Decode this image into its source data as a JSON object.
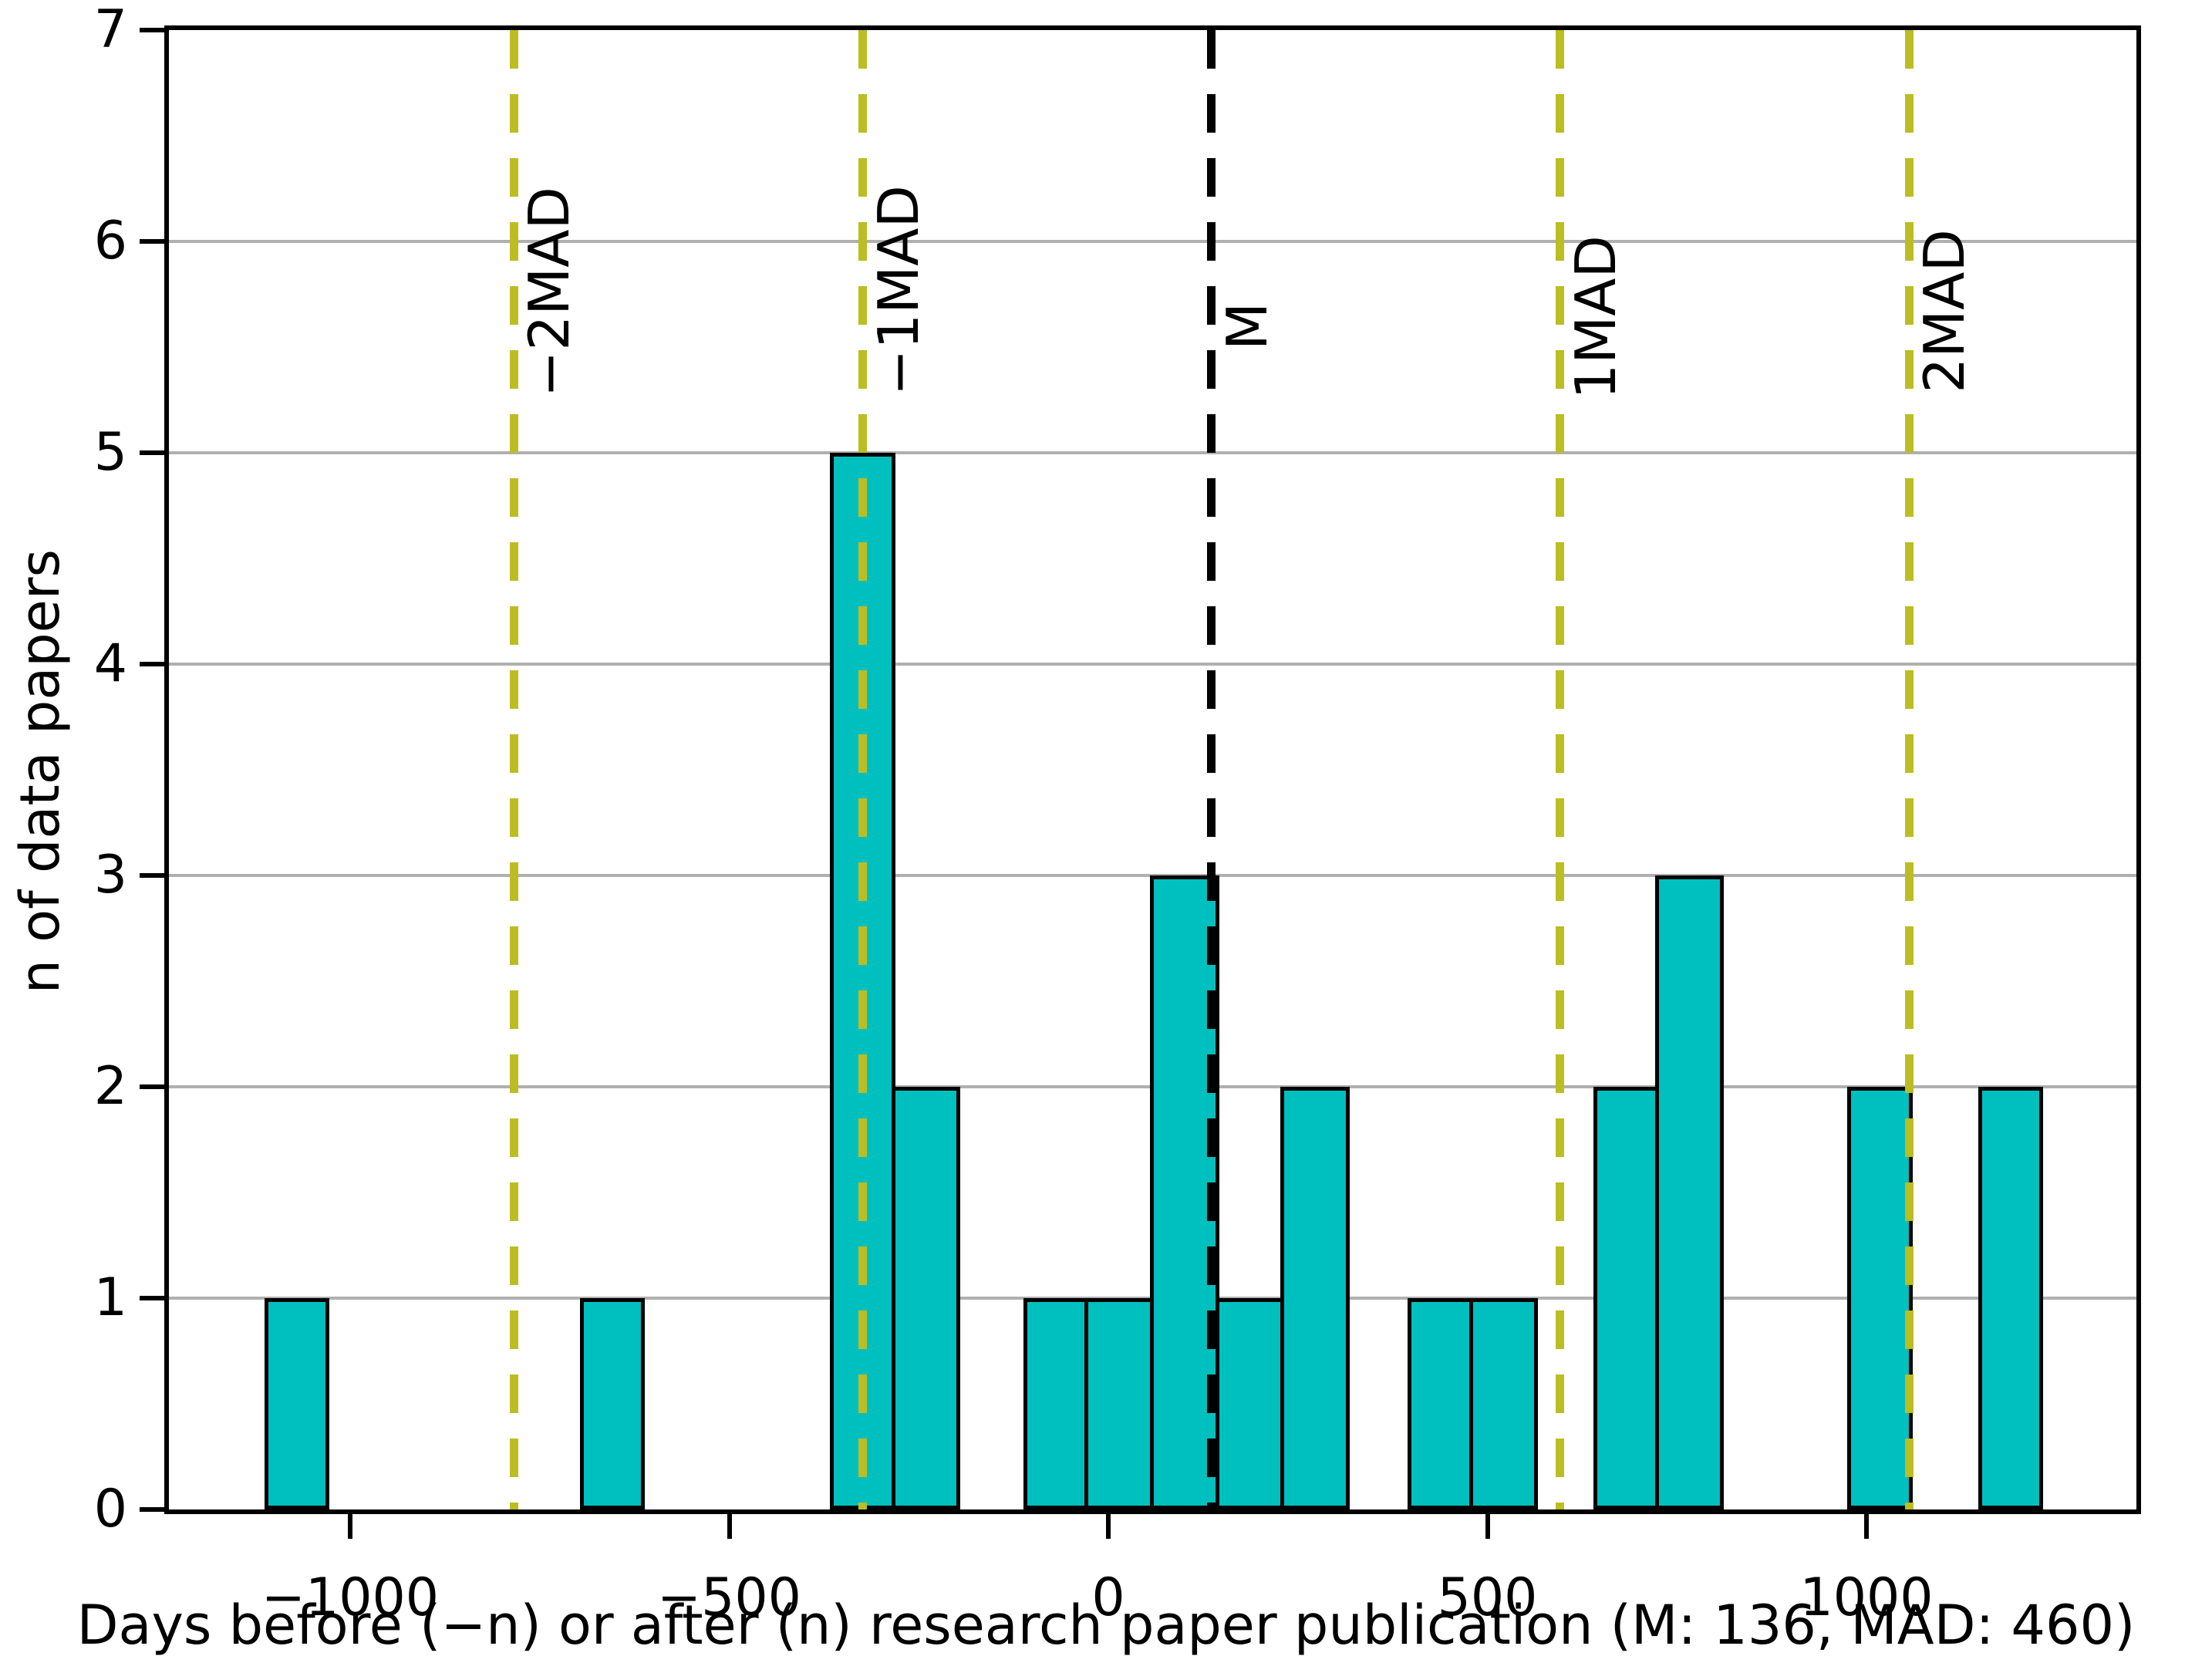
{
  "chart_data": {
    "type": "bar",
    "subtype": "histogram",
    "title": "",
    "xlabel": "Days before (−n) or after (n) research paper publication (M: 136, MAD: 460)",
    "ylabel": "n of data papers",
    "xlim": [
      -1240,
      1356
    ],
    "ylim": [
      0,
      7
    ],
    "x_tick_values": [
      -1000,
      -500,
      0,
      500,
      1000
    ],
    "x_tick_labels": [
      "−1000",
      "−500",
      "0",
      "500",
      "1000"
    ],
    "y_tick_values": [
      0,
      1,
      2,
      3,
      4,
      5,
      6,
      7
    ],
    "y_tick_labels": [
      "0",
      "1",
      "2",
      "3",
      "4",
      "5",
      "6",
      "7"
    ],
    "grid": "horizontal",
    "grid_color": "#b0b0b0",
    "bar_fill_color": "#00bfbf",
    "bar_edge_color": "#000000",
    "approx_bin_width_days": 86,
    "bins": [
      {
        "start": -1113,
        "end": -1027,
        "count": 1
      },
      {
        "start": -697,
        "end": -611,
        "count": 1
      },
      {
        "start": -367,
        "end": -281,
        "count": 5
      },
      {
        "start": -281,
        "end": -195,
        "count": 2
      },
      {
        "start": -112,
        "end": -26,
        "count": 1
      },
      {
        "start": -26,
        "end": 60,
        "count": 1
      },
      {
        "start": 60,
        "end": 146,
        "count": 3
      },
      {
        "start": 146,
        "end": 232,
        "count": 1
      },
      {
        "start": 232,
        "end": 318,
        "count": 2
      },
      {
        "start": 395,
        "end": 481,
        "count": 1
      },
      {
        "start": 481,
        "end": 567,
        "count": 1
      },
      {
        "start": 640,
        "end": 726,
        "count": 2
      },
      {
        "start": 726,
        "end": 812,
        "count": 3
      },
      {
        "start": 975,
        "end": 1061,
        "count": 2
      },
      {
        "start": 1147,
        "end": 1233,
        "count": 2
      }
    ],
    "reference_lines": [
      {
        "label": "−2MAD",
        "x": -784,
        "color": "#bcbd22",
        "style": "dashed"
      },
      {
        "label": "−1MAD",
        "x": -324,
        "color": "#bcbd22",
        "style": "dashed"
      },
      {
        "label": "M",
        "x": 136,
        "color": "#000000",
        "style": "dashed"
      },
      {
        "label": "1MAD",
        "x": 596,
        "color": "#bcbd22",
        "style": "dashed"
      },
      {
        "label": "2MAD",
        "x": 1056,
        "color": "#bcbd22",
        "style": "dashed"
      }
    ],
    "stats": {
      "M": 136,
      "MAD": 460
    }
  }
}
